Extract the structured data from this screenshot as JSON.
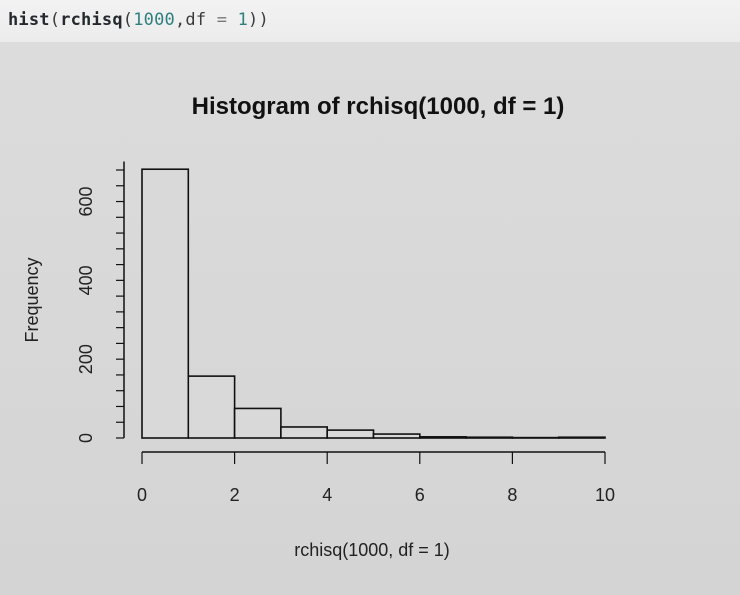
{
  "code": {
    "fn": "hist",
    "inner_fn": "rchisq",
    "n": "1000",
    "df_name": "df",
    "df_value": "1"
  },
  "chart_data": {
    "type": "bar",
    "title": "Histogram of rchisq(1000, df = 1)",
    "xlabel": "rchisq(1000, df = 1)",
    "ylabel": "Frequency",
    "xlim": [
      0,
      10
    ],
    "ylim": [
      0,
      680
    ],
    "x_ticks": [
      0,
      2,
      4,
      6,
      8,
      10
    ],
    "y_ticks": [
      0,
      200,
      400,
      600
    ],
    "bins": [
      {
        "x0": 0,
        "x1": 1,
        "count": 682
      },
      {
        "x0": 1,
        "x1": 2,
        "count": 157
      },
      {
        "x0": 2,
        "x1": 3,
        "count": 75
      },
      {
        "x0": 3,
        "x1": 4,
        "count": 28
      },
      {
        "x0": 4,
        "x1": 5,
        "count": 20
      },
      {
        "x0": 5,
        "x1": 6,
        "count": 10
      },
      {
        "x0": 6,
        "x1": 7,
        "count": 3
      },
      {
        "x0": 7,
        "x1": 8,
        "count": 2
      },
      {
        "x0": 8,
        "x1": 9,
        "count": 1
      },
      {
        "x0": 9,
        "x1": 10,
        "count": 2
      }
    ],
    "colors": {
      "bar_fill": "#d9d9d9",
      "bar_stroke": "#111111"
    }
  }
}
